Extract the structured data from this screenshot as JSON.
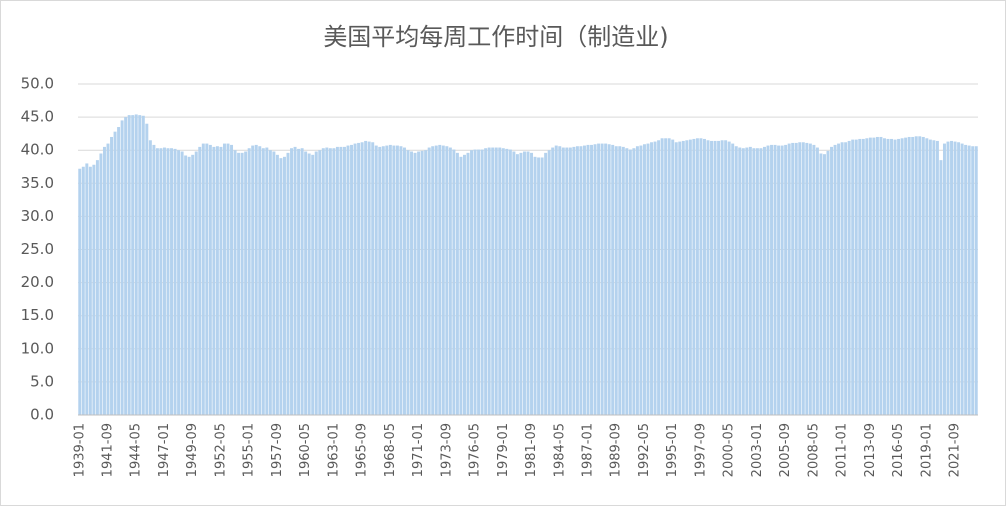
{
  "chart_data": {
    "type": "bar",
    "title": "美国平均每周工作时间（制造业)",
    "categories": [
      "1939-01",
      null,
      null,
      null,
      null,
      null,
      null,
      null,
      "1941-09",
      null,
      null,
      null,
      null,
      null,
      null,
      null,
      "1944-05",
      null,
      null,
      null,
      null,
      null,
      null,
      null,
      "1947-01",
      null,
      null,
      null,
      null,
      null,
      null,
      null,
      "1949-09",
      null,
      null,
      null,
      null,
      null,
      null,
      null,
      "1952-05",
      null,
      null,
      null,
      null,
      null,
      null,
      null,
      "1955-01",
      null,
      null,
      null,
      null,
      null,
      null,
      null,
      "1957-09",
      null,
      null,
      null,
      null,
      null,
      null,
      null,
      "1960-05",
      null,
      null,
      null,
      null,
      null,
      null,
      null,
      "1963-01",
      null,
      null,
      null,
      null,
      null,
      null,
      null,
      "1965-09",
      null,
      null,
      null,
      null,
      null,
      null,
      null,
      "1968-05",
      null,
      null,
      null,
      null,
      null,
      null,
      null,
      "1971-01",
      null,
      null,
      null,
      null,
      null,
      null,
      null,
      "1973-09",
      null,
      null,
      null,
      null,
      null,
      null,
      null,
      "1976-05",
      null,
      null,
      null,
      null,
      null,
      null,
      null,
      "1979-01",
      null,
      null,
      null,
      null,
      null,
      null,
      null,
      "1981-09",
      null,
      null,
      null,
      null,
      null,
      null,
      null,
      "1984-05",
      null,
      null,
      null,
      null,
      null,
      null,
      null,
      "1987-01",
      null,
      null,
      null,
      null,
      null,
      null,
      null,
      "1989-09",
      null,
      null,
      null,
      null,
      null,
      null,
      null,
      "1992-05",
      null,
      null,
      null,
      null,
      null,
      null,
      null,
      "1995-01",
      null,
      null,
      null,
      null,
      null,
      null,
      null,
      "1997-09",
      null,
      null,
      null,
      null,
      null,
      null,
      null,
      "2000-05",
      null,
      null,
      null,
      null,
      null,
      null,
      null,
      "2003-01",
      null,
      null,
      null,
      null,
      null,
      null,
      null,
      "2005-09",
      null,
      null,
      null,
      null,
      null,
      null,
      null,
      "2008-05",
      null,
      null,
      null,
      null,
      null,
      null,
      null,
      "2011-01",
      null,
      null,
      null,
      null,
      null,
      null,
      null,
      "2013-09",
      null,
      null,
      null,
      null,
      null,
      null,
      null,
      "2016-05",
      null,
      null,
      null,
      null,
      null,
      null,
      null,
      "2019-01",
      null,
      null,
      null,
      null,
      null,
      null,
      null,
      "2021-09",
      null,
      null,
      null,
      null,
      null,
      null
    ],
    "values": [
      37.2,
      37.5,
      38.0,
      37.5,
      37.8,
      38.5,
      39.5,
      40.5,
      41.0,
      42.0,
      42.8,
      43.5,
      44.5,
      45.0,
      45.3,
      45.3,
      45.4,
      45.3,
      45.2,
      44.0,
      41.5,
      40.8,
      40.3,
      40.3,
      40.4,
      40.3,
      40.3,
      40.2,
      40.0,
      39.8,
      39.2,
      39.0,
      39.3,
      39.8,
      40.5,
      41.0,
      41.0,
      40.8,
      40.5,
      40.6,
      40.5,
      41.0,
      41.0,
      40.8,
      40.0,
      39.6,
      39.6,
      39.8,
      40.3,
      40.7,
      40.8,
      40.6,
      40.3,
      40.4,
      40.0,
      39.8,
      39.3,
      38.8,
      39.0,
      39.6,
      40.3,
      40.5,
      40.2,
      40.3,
      39.8,
      39.5,
      39.3,
      39.8,
      40.0,
      40.3,
      40.4,
      40.3,
      40.3,
      40.5,
      40.5,
      40.5,
      40.7,
      40.8,
      41.0,
      41.1,
      41.2,
      41.4,
      41.3,
      41.2,
      40.7,
      40.5,
      40.6,
      40.7,
      40.8,
      40.7,
      40.7,
      40.6,
      40.4,
      40.0,
      39.8,
      39.6,
      39.8,
      39.9,
      40.0,
      40.4,
      40.6,
      40.7,
      40.8,
      40.7,
      40.6,
      40.4,
      40.1,
      39.6,
      39.0,
      39.3,
      39.6,
      40.0,
      40.1,
      40.1,
      40.1,
      40.3,
      40.4,
      40.4,
      40.4,
      40.4,
      40.3,
      40.2,
      40.1,
      39.8,
      39.4,
      39.6,
      39.8,
      39.8,
      39.6,
      39.0,
      38.9,
      38.9,
      39.6,
      40.0,
      40.4,
      40.7,
      40.6,
      40.4,
      40.4,
      40.4,
      40.5,
      40.6,
      40.6,
      40.7,
      40.8,
      40.8,
      40.9,
      41.0,
      41.0,
      41.0,
      40.9,
      40.8,
      40.6,
      40.6,
      40.5,
      40.3,
      40.1,
      40.3,
      40.6,
      40.7,
      40.9,
      41.0,
      41.2,
      41.3,
      41.5,
      41.8,
      41.8,
      41.8,
      41.6,
      41.2,
      41.3,
      41.4,
      41.5,
      41.6,
      41.7,
      41.8,
      41.8,
      41.7,
      41.5,
      41.4,
      41.4,
      41.4,
      41.5,
      41.5,
      41.3,
      41.0,
      40.6,
      40.4,
      40.3,
      40.4,
      40.5,
      40.3,
      40.3,
      40.3,
      40.5,
      40.7,
      40.8,
      40.8,
      40.7,
      40.7,
      40.8,
      41.0,
      41.1,
      41.1,
      41.2,
      41.2,
      41.1,
      41.0,
      40.8,
      40.4,
      39.5,
      39.4,
      39.9,
      40.5,
      40.8,
      41.0,
      41.2,
      41.2,
      41.4,
      41.6,
      41.6,
      41.7,
      41.7,
      41.8,
      41.9,
      41.9,
      42.0,
      42.0,
      41.8,
      41.7,
      41.7,
      41.6,
      41.7,
      41.8,
      41.9,
      42.0,
      42.0,
      42.1,
      42.1,
      42.0,
      41.8,
      41.6,
      41.5,
      41.4,
      38.5,
      41.0,
      41.3,
      41.4,
      41.3,
      41.2,
      41.0,
      40.8,
      40.7,
      40.6,
      40.6
    ],
    "color": "#b4d2ee",
    "ylim": [
      0,
      50
    ],
    "yticks": [
      {
        "value": 0,
        "label": "0.0"
      },
      {
        "value": 5,
        "label": "5.0"
      },
      {
        "value": 10,
        "label": "10.0"
      },
      {
        "value": 15,
        "label": "15.0"
      },
      {
        "value": 20,
        "label": "20.0"
      },
      {
        "value": 25,
        "label": "25.0"
      },
      {
        "value": 30,
        "label": "30.0"
      },
      {
        "value": 35,
        "label": "35.0"
      },
      {
        "value": 40,
        "label": "40.0"
      },
      {
        "value": 45,
        "label": "45.0"
      },
      {
        "value": 50,
        "label": "50.0"
      }
    ],
    "grid": true
  }
}
